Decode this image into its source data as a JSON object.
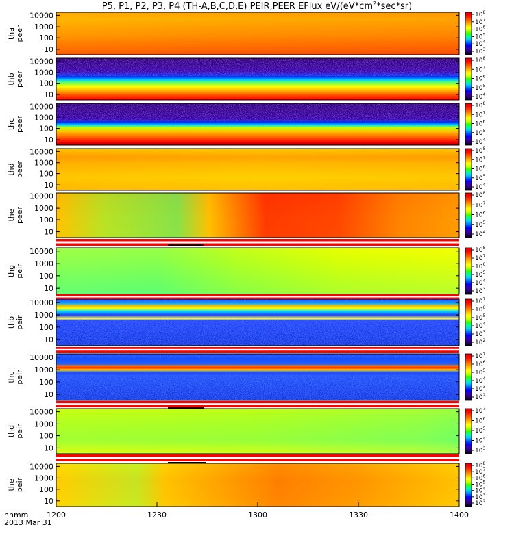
{
  "title": "P5, P1, P2, P3, P4 (TH-A,B,C,D,E) PEIR,PEER EFlux eV/(eV*cm",
  "title_sup": "2",
  "title_tail": "*sec*sr)",
  "xaxis": {
    "label_line1": "hhmm",
    "label_line2": "2013 Mar 31",
    "ticks": [
      "1200",
      "1230",
      "1300",
      "1330",
      "1400"
    ],
    "range_minutes": [
      0,
      120
    ]
  },
  "chart_data": [
    {
      "type": "heatmap",
      "ylabel": [
        "tha",
        "peer"
      ],
      "yticks": [
        "10000",
        "1000",
        "100",
        "10"
      ],
      "cbar_exp": [
        "8",
        "7",
        "6",
        "5",
        "4",
        "3"
      ],
      "pattern": "tha_peer"
    },
    {
      "type": "heatmap",
      "ylabel": [
        "thb",
        "peer"
      ],
      "yticks": [
        "10000",
        "1000",
        "100",
        "10"
      ],
      "cbar_exp": [
        "8",
        "7",
        "6",
        "5",
        "4"
      ],
      "pattern": "thb_peer"
    },
    {
      "type": "heatmap",
      "ylabel": [
        "thc",
        "peer"
      ],
      "yticks": [
        "10000",
        "1000",
        "100",
        "10"
      ],
      "cbar_exp": [
        "8",
        "7",
        "6",
        "5",
        "4"
      ],
      "pattern": "thc_peer"
    },
    {
      "type": "heatmap",
      "ylabel": [
        "thd",
        "peer"
      ],
      "yticks": [
        "10000",
        "1000",
        "100",
        "10"
      ],
      "cbar_exp": [
        "8",
        "7",
        "6",
        "5",
        "4"
      ],
      "pattern": "thd_peer"
    },
    {
      "type": "heatmap",
      "ylabel": [
        "the",
        "peer"
      ],
      "yticks": [
        "10000",
        "1000",
        "100",
        "10"
      ],
      "cbar_exp": [
        "8",
        "7",
        "6",
        "5",
        "4"
      ],
      "pattern": "the_peer"
    },
    {
      "type": "heatmap",
      "ylabel": [
        "thg",
        "peir"
      ],
      "yticks": [
        "10000",
        "1000",
        "100",
        "10"
      ],
      "cbar_exp": [
        "8",
        "7",
        "6",
        "5",
        "4",
        "3"
      ],
      "pattern": "thg_peir"
    },
    {
      "type": "heatmap",
      "ylabel": [
        "thb",
        "peir"
      ],
      "yticks": [
        "10000",
        "1000",
        "100",
        "10"
      ],
      "cbar_exp": [
        "7",
        "6",
        "5",
        "4",
        "3",
        "2"
      ],
      "pattern": "thb_peir"
    },
    {
      "type": "heatmap",
      "ylabel": [
        "thc",
        "peir"
      ],
      "yticks": [
        "10000",
        "1000",
        "100",
        "10"
      ],
      "cbar_exp": [
        "7",
        "6",
        "5",
        "4",
        "3",
        "2"
      ],
      "pattern": "thc_peir"
    },
    {
      "type": "heatmap",
      "ylabel": [
        "thd",
        "peir"
      ],
      "yticks": [
        "10000",
        "1000",
        "100",
        "10"
      ],
      "cbar_exp": [
        "7",
        "6",
        "5",
        "4",
        "3"
      ],
      "pattern": "thd_peir"
    },
    {
      "type": "heatmap",
      "ylabel": [
        "the",
        "peir"
      ],
      "yticks": [
        "10000",
        "1000",
        "100",
        "10"
      ],
      "cbar_exp": [
        "8",
        "7",
        "6",
        "5",
        "4",
        "3",
        "2"
      ],
      "pattern": "the_peir"
    }
  ],
  "colors": {
    "stripe_red": "#ff0000",
    "stripe_white": "#ffffff",
    "colorbar": [
      "#000000",
      "#2a0070",
      "#3a00b0",
      "#0000ff",
      "#0060ff",
      "#00c8ff",
      "#00ff9c",
      "#30ff00",
      "#c8ff00",
      "#ffff00",
      "#ffc000",
      "#ff8000",
      "#ff3c00",
      "#ff0000",
      "#e80000"
    ]
  }
}
